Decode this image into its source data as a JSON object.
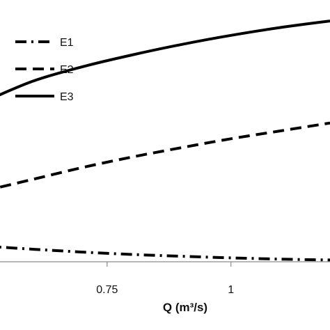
{
  "chart_data": {
    "type": "line",
    "title": "",
    "xlabel": "Q (m³/s)",
    "ylabel": "",
    "xlim": [
      0.5,
      1.2
    ],
    "ylim": [
      0,
      1
    ],
    "x_ticks": [
      0.75,
      1
    ],
    "x_tick_labels": [
      "0.75",
      "1"
    ],
    "grid": false,
    "legend_position": "top-left",
    "series": [
      {
        "name": "E1",
        "line_style": "dash-dot",
        "color": "#000000",
        "x": [
          0.5,
          0.6,
          0.7,
          0.8,
          0.9,
          1.0,
          1.1,
          1.2
        ],
        "y": [
          0.06,
          0.048,
          0.037,
          0.028,
          0.021,
          0.015,
          0.01,
          0.007
        ]
      },
      {
        "name": "E2",
        "line_style": "dashed",
        "color": "#000000",
        "x": [
          0.5,
          0.6,
          0.7,
          0.8,
          0.9,
          1.0,
          1.1,
          1.2
        ],
        "y": [
          0.27,
          0.315,
          0.36,
          0.4,
          0.436,
          0.47,
          0.5,
          0.53
        ]
      },
      {
        "name": "E3",
        "line_style": "solid",
        "color": "#000000",
        "x": [
          0.5,
          0.6,
          0.7,
          0.8,
          0.9,
          1.0,
          1.1,
          1.2
        ],
        "y": [
          0.61,
          0.69,
          0.745,
          0.79,
          0.83,
          0.865,
          0.895,
          0.92
        ]
      }
    ]
  }
}
